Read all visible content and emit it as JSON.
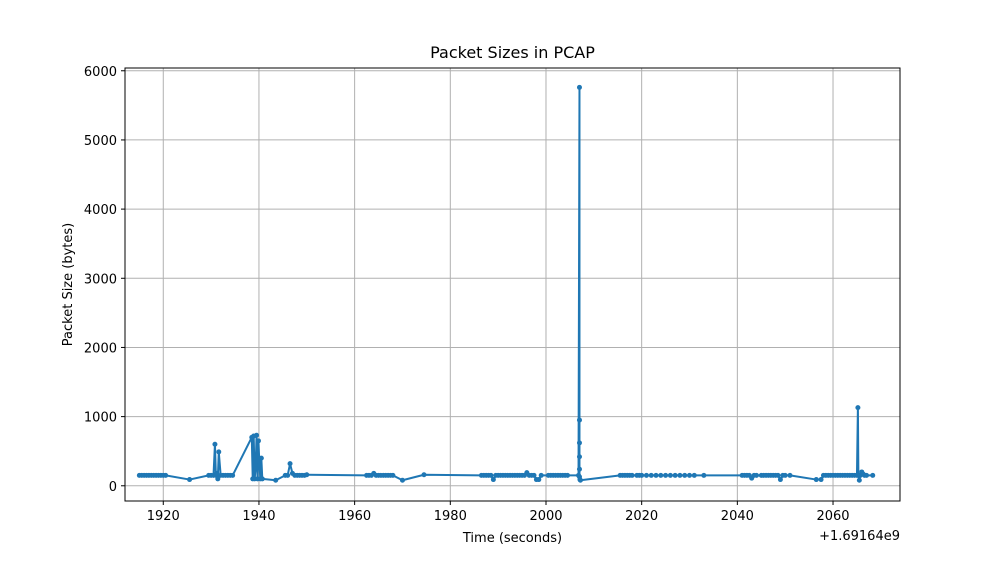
{
  "chart_data": {
    "type": "line",
    "title": "Packet Sizes in PCAP",
    "xlabel": "Time (seconds)",
    "ylabel": "Packet Size (bytes)",
    "x_offset_label": "+1.69164e9",
    "xlim": [
      1912,
      2074
    ],
    "ylim": [
      -220,
      6040
    ],
    "xticks": [
      1920,
      1940,
      1960,
      1980,
      2000,
      2020,
      2040,
      2060
    ],
    "yticks": [
      0,
      1000,
      2000,
      3000,
      4000,
      5000,
      6000
    ],
    "grid": true,
    "color": "#1f77b4",
    "series": [
      {
        "x": [
          1915,
          1915.5,
          1916,
          1916.5,
          1917,
          1917.5,
          1918,
          1918.5,
          1919,
          1919.5,
          1920,
          1920.5,
          1925.5,
          1929.5,
          1930,
          1930.5,
          1930.8,
          1931,
          1931.2,
          1931.4,
          1931.6,
          1932,
          1932.5,
          1933,
          1933.5,
          1934,
          1934.5,
          1938.5,
          1938.7,
          1938.9,
          1939.1,
          1939.3,
          1939.5,
          1939.7,
          1939.9,
          1940.1,
          1940.3,
          1940.5,
          1940.7,
          1943.5,
          1945.5,
          1946,
          1946.5,
          1947,
          1947.5,
          1948,
          1948.5,
          1949,
          1949.5,
          1950,
          1962.5,
          1963,
          1963.5,
          1964,
          1964.5,
          1965,
          1965.5,
          1966,
          1966.5,
          1967,
          1967.5,
          1968,
          1970,
          1974.5,
          1986.5,
          1987,
          1987.5,
          1988,
          1988.5,
          1989,
          1989.5,
          1990,
          1990.5,
          1991,
          1991.5,
          1992,
          1992.5,
          1993,
          1993.5,
          1994,
          1994.5,
          1995,
          1995.5,
          1996,
          1996.5,
          1997,
          1997.5,
          1998,
          1998.5,
          1999,
          2000.5,
          2001,
          2001.5,
          2002,
          2002.5,
          2003,
          2003.5,
          2004,
          2004.5,
          2006.8,
          2007,
          2007,
          2007,
          2007,
          2007,
          2007,
          2007.1,
          2007.2,
          2015.5,
          2016,
          2016.5,
          2017,
          2017.5,
          2018,
          2019,
          2019.5,
          2020,
          2021,
          2022,
          2023,
          2024,
          2025,
          2026,
          2027,
          2028,
          2029,
          2030,
          2031,
          2033,
          2041,
          2041.5,
          2042,
          2042.5,
          2043,
          2043.5,
          2044,
          2045,
          2045.5,
          2046,
          2046.5,
          2047,
          2047.5,
          2048,
          2048.5,
          2049,
          2049.5,
          2050,
          2051,
          2056.5,
          2057.5,
          2058,
          2058.5,
          2059,
          2059.5,
          2060,
          2060.5,
          2061,
          2061.5,
          2062,
          2062.5,
          2063,
          2063.5,
          2064,
          2064.5,
          2065,
          2065.2,
          2065.3,
          2065.5,
          2065.7,
          2066,
          2066.3,
          2066.6,
          2067,
          2068.3
        ],
        "y": [
          150,
          150,
          150,
          150,
          150,
          150,
          150,
          150,
          150,
          150,
          150,
          150,
          90,
          150,
          150,
          150,
          600,
          150,
          180,
          100,
          490,
          150,
          150,
          150,
          150,
          150,
          150,
          700,
          100,
          720,
          100,
          250,
          730,
          100,
          650,
          300,
          100,
          400,
          100,
          80,
          150,
          150,
          320,
          180,
          150,
          150,
          150,
          150,
          150,
          160,
          150,
          150,
          150,
          180,
          150,
          150,
          150,
          150,
          150,
          150,
          150,
          150,
          80,
          160,
          150,
          150,
          150,
          150,
          150,
          90,
          150,
          150,
          150,
          150,
          150,
          150,
          150,
          150,
          150,
          150,
          150,
          150,
          150,
          190,
          150,
          150,
          150,
          90,
          90,
          150,
          150,
          150,
          150,
          150,
          150,
          150,
          150,
          150,
          150,
          150,
          5760,
          420,
          950,
          620,
          240,
          130,
          90,
          80,
          150,
          150,
          150,
          150,
          150,
          150,
          150,
          150,
          150,
          150,
          150,
          150,
          150,
          150,
          150,
          150,
          150,
          150,
          150,
          150,
          150,
          150,
          150,
          150,
          150,
          110,
          150,
          150,
          150,
          150,
          150,
          150,
          150,
          150,
          150,
          150,
          90,
          150,
          150,
          150,
          90,
          90,
          150,
          150,
          150,
          150,
          150,
          150,
          150,
          150,
          150,
          150,
          150,
          150,
          150,
          150,
          150,
          1130,
          150,
          80,
          150,
          200,
          170,
          150,
          150,
          150
        ]
      }
    ]
  }
}
